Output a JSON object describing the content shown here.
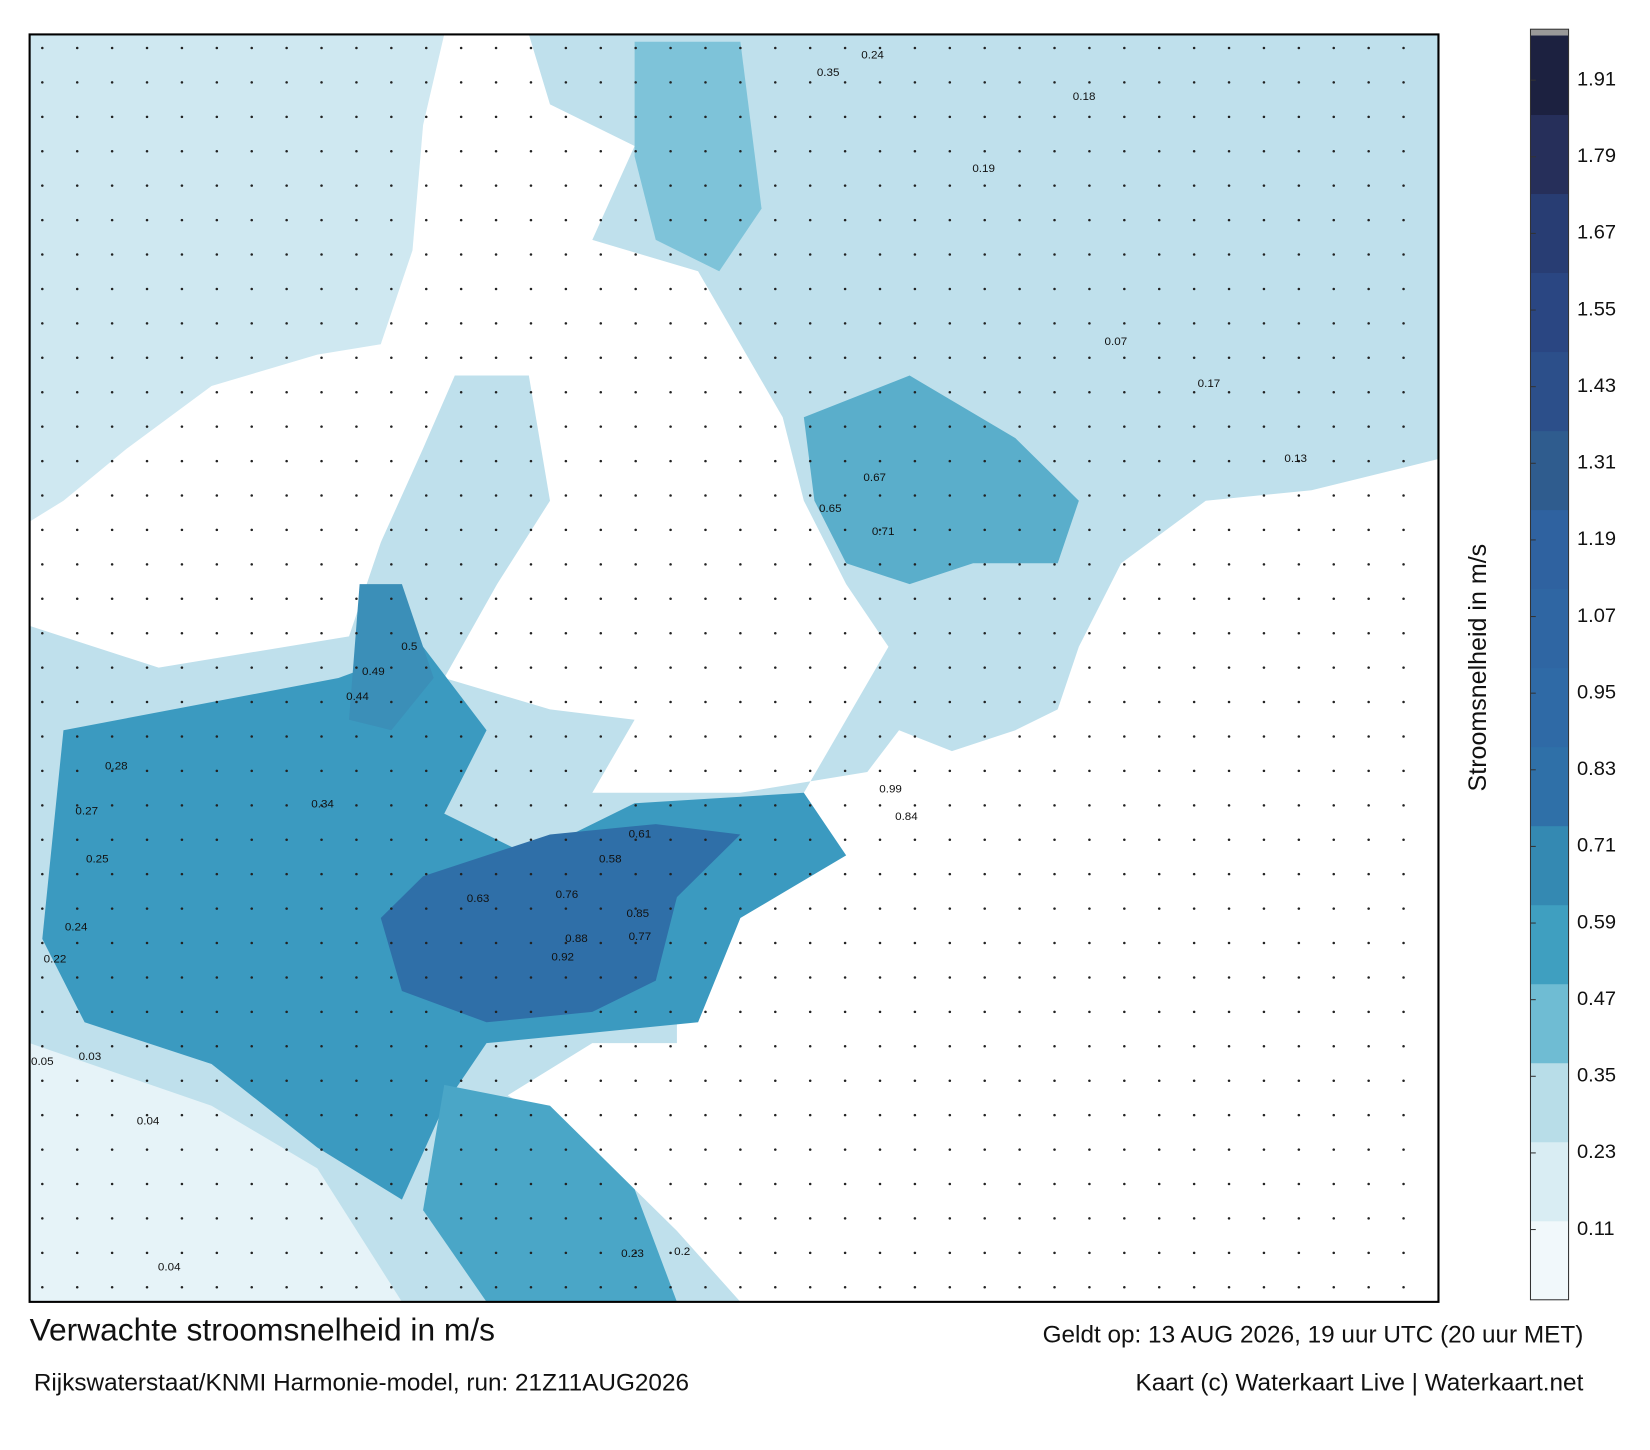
{
  "chart_data": {
    "type": "map",
    "title": "Verwachte stroomsnelheid in m/s",
    "subtitle": "Rijkswaterstaat/KNMI Harmonie-model, run: 21Z11AUG2026",
    "valid_time": "Geldt op: 13 AUG 2026, 19 uur UTC (20 uur MET)",
    "credit": "Kaart (c) Waterkaart Live | Waterkaart.net",
    "map_values": [
      0.99,
      0.84,
      0.71,
      0.67,
      0.65,
      0.92,
      0.88,
      0.85,
      0.77,
      0.76,
      0.63,
      0.58,
      0.61,
      0.5,
      0.49,
      0.44,
      0.34,
      0.28,
      0.27,
      0.25,
      0.24,
      0.22,
      0.05,
      0.04,
      0.04,
      0.35,
      0.24,
      0.18,
      0.19,
      0.17,
      0.13,
      0.07,
      0.03,
      0.2,
      0.23
    ],
    "colorbar": {
      "label": "Stroomsnelheid in m/s",
      "lim": [
        0,
        1.98
      ],
      "ticks": [
        0.11,
        0.23,
        0.35,
        0.47,
        0.59,
        0.71,
        0.83,
        0.95,
        1.07,
        1.19,
        1.31,
        1.43,
        1.55,
        1.67,
        1.79,
        1.91
      ],
      "colors": [
        "#f1f8fb",
        "#d9edf3",
        "#b8dde8",
        "#6fbcd3",
        "#3f9fc0",
        "#3489b2",
        "#2f70a8",
        "#2f6aa6",
        "#2f66a3",
        "#2f62a0",
        "#2f5c8e",
        "#2c4f8a",
        "#2a4682",
        "#283d73",
        "#262f5a",
        "#1c2140"
      ]
    }
  }
}
